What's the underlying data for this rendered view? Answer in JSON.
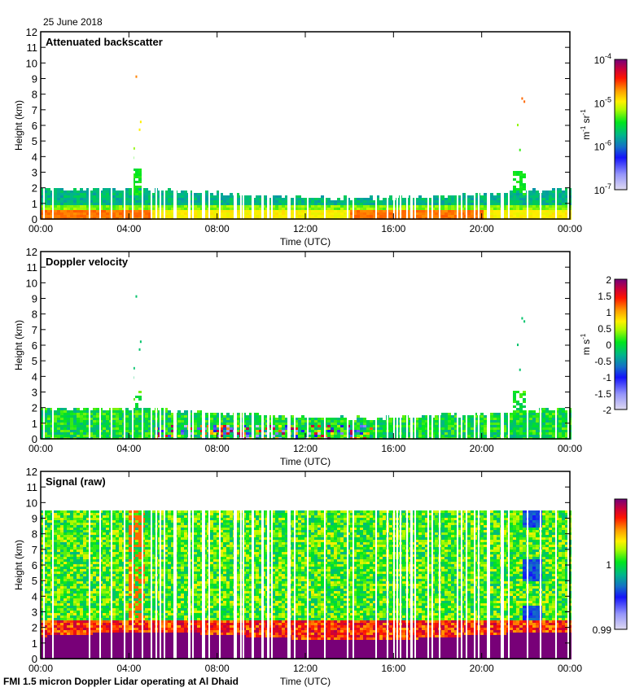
{
  "header": {
    "date": "25 June 2018"
  },
  "footer": {
    "caption": "FMI 1.5 micron Doppler Lidar operating at Al Dhaid"
  },
  "chart_data": [
    {
      "type": "heatmap",
      "title": "Attenuated backscatter",
      "xlabel": "Time (UTC)",
      "ylabel": "Height (km)",
      "xticks": [
        "00:00",
        "04:00",
        "08:00",
        "12:00",
        "16:00",
        "20:00",
        "00:00"
      ],
      "yticks": [
        "0",
        "1",
        "2",
        "3",
        "4",
        "5",
        "6",
        "7",
        "8",
        "9",
        "10",
        "11",
        "12"
      ],
      "ylim": [
        0,
        12
      ],
      "xlim_hours": [
        0,
        24
      ],
      "colorbar": {
        "label": "m-1 sr-1",
        "scale": "log",
        "range": [
          1e-07,
          0.0001
        ],
        "ticks": [
          "10-7",
          "10-6",
          "10-5",
          "10-4"
        ]
      },
      "features": [
        {
          "description": "aerosol boundary layer top",
          "height_km_approx": 1.7
        },
        {
          "description": "cloud plume near 04:20",
          "height_km_range": [
            2,
            9.2
          ]
        },
        {
          "description": "cloud plume near 21:40",
          "height_km_range": [
            2,
            8
          ]
        }
      ]
    },
    {
      "type": "heatmap",
      "title": "Doppler velocity",
      "xlabel": "Time (UTC)",
      "ylabel": "Height (km)",
      "xticks": [
        "00:00",
        "04:00",
        "08:00",
        "12:00",
        "16:00",
        "20:00",
        "00:00"
      ],
      "yticks": [
        "0",
        "1",
        "2",
        "3",
        "4",
        "5",
        "6",
        "7",
        "8",
        "9",
        "10",
        "11",
        "12"
      ],
      "ylim": [
        0,
        12
      ],
      "xlim_hours": [
        0,
        24
      ],
      "colorbar": {
        "label": "m s-1",
        "scale": "linear",
        "range": [
          -2,
          2
        ],
        "ticks": [
          "-2",
          "-1.5",
          "-1",
          "-0.5",
          "0",
          "0.5",
          "1",
          "1.5",
          "2"
        ]
      }
    },
    {
      "type": "heatmap",
      "title": "Signal (raw)",
      "xlabel": "Time (UTC)",
      "ylabel": "Height (km)",
      "xticks": [
        "00:00",
        "04:00",
        "08:00",
        "12:00",
        "16:00",
        "20:00",
        "00:00"
      ],
      "yticks": [
        "0",
        "1",
        "2",
        "3",
        "4",
        "5",
        "6",
        "7",
        "8",
        "9",
        "10",
        "11",
        "12"
      ],
      "ylim": [
        0,
        12
      ],
      "xlim_hours": [
        0,
        24
      ],
      "data_top_km": 9.6,
      "colorbar": {
        "label": "",
        "scale": "linear",
        "range": [
          0.99,
          1.01
        ],
        "ticks": [
          "0.99",
          "1"
        ]
      }
    }
  ]
}
